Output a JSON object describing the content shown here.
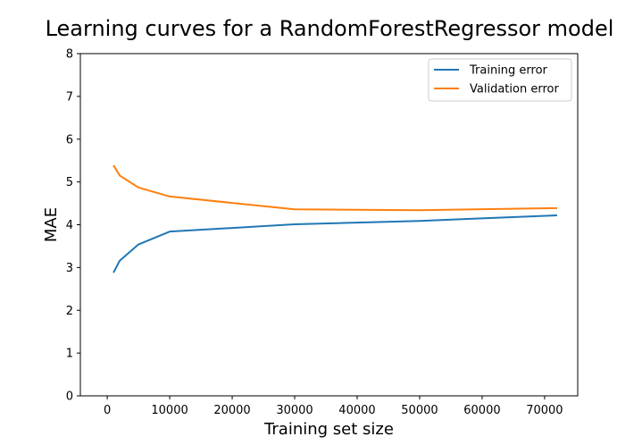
{
  "chart_data": {
    "type": "line",
    "title": "Learning curves for a RandomForestRegressor model",
    "xlabel": "Training set size",
    "ylabel": "MAE",
    "xlim": [
      -4300,
      75300
    ],
    "ylim": [
      0,
      8
    ],
    "xticks": [
      0,
      10000,
      20000,
      30000,
      40000,
      50000,
      60000,
      70000
    ],
    "yticks": [
      0,
      1,
      2,
      3,
      4,
      5,
      6,
      7,
      8
    ],
    "grid": false,
    "legend_position": "top-right",
    "x": [
      1000,
      2000,
      5000,
      10000,
      30000,
      50000,
      72000
    ],
    "series": [
      {
        "name": "Training error",
        "color": "#1f77b4",
        "values": [
          2.88,
          3.16,
          3.54,
          3.84,
          4.01,
          4.09,
          4.22
        ]
      },
      {
        "name": "Validation error",
        "color": "#ff7f0e",
        "values": [
          5.39,
          5.15,
          4.87,
          4.66,
          4.36,
          4.34,
          4.39
        ]
      }
    ]
  }
}
